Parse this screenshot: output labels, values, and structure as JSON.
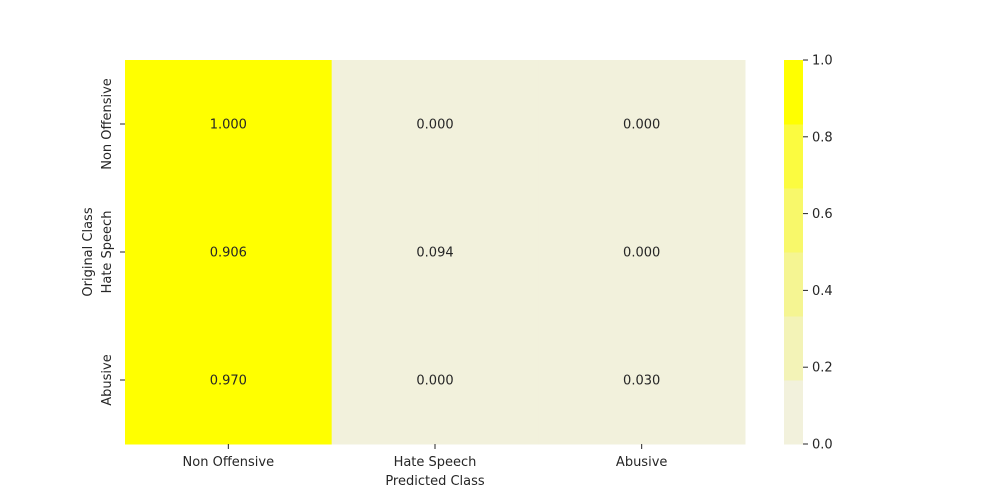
{
  "chart_data": {
    "type": "heatmap",
    "title": "",
    "xlabel": "Predicted Class",
    "ylabel": "Original Class",
    "x_categories": [
      "Non Offensive",
      "Hate Speech",
      "Abusive"
    ],
    "y_categories": [
      "Non Offensive",
      "Hate Speech",
      "Abusive"
    ],
    "values": [
      [
        1.0,
        0.0,
        0.0
      ],
      [
        0.906,
        0.094,
        0.0
      ],
      [
        0.97,
        0.0,
        0.03
      ]
    ],
    "value_labels": [
      [
        "1.000",
        "0.000",
        "0.000"
      ],
      [
        "0.906",
        "0.094",
        "0.000"
      ],
      [
        "0.970",
        "0.000",
        "0.030"
      ]
    ],
    "value_range": [
      0,
      1
    ],
    "colorbar": {
      "ticks": [
        "0.0",
        "0.2",
        "0.4",
        "0.6",
        "0.8",
        "1.0"
      ],
      "colors": [
        "#f2f1dc",
        "#f3f3b7",
        "#f5f592",
        "#f8f86a",
        "#fbfb40",
        "#ffff00"
      ]
    },
    "grid": false,
    "legend": "colorbar-right"
  }
}
